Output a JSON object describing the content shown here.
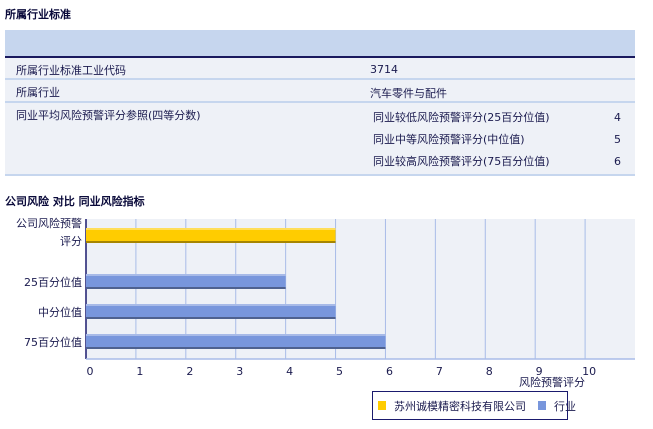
{
  "industry_section": {
    "title": "所属行业标准",
    "rows": [
      {
        "label": "所属行业标准工业代码",
        "value": "3714"
      },
      {
        "label": "所属行业",
        "value": "汽车零件与配件"
      },
      {
        "label": "同业平均风险预警评分参照(四等分数)",
        "sub": [
          {
            "label": "同业较低风险预警评分(25百分位值)",
            "value": "4"
          },
          {
            "label": "同业中等风险预警评分(中位值)",
            "value": "5"
          },
          {
            "label": "同业较高风险预警评分(75百分位值)",
            "value": "6"
          }
        ]
      }
    ]
  },
  "chart_section": {
    "title": "公司风险 对比 同业风险指标"
  },
  "chart_data": {
    "type": "bar",
    "orientation": "horizontal",
    "categories": [
      "公司风险预警评分",
      "25百分位值",
      "中分位值",
      "75百分位值"
    ],
    "series": [
      {
        "name": "苏州诚模精密科技有限公司",
        "color": "#ffcc00",
        "values": [
          5,
          null,
          null,
          null
        ]
      },
      {
        "name": "行业",
        "color": "#7896dc",
        "values": [
          null,
          4,
          5,
          6
        ]
      }
    ],
    "xlabel": "风险预警评分",
    "xlim": [
      0,
      11
    ],
    "xticks": [
      "0",
      "1",
      "2",
      "3",
      "4",
      "5",
      "6",
      "7",
      "8",
      "9",
      "10"
    ],
    "grid": true,
    "legend": "bottom-right"
  }
}
